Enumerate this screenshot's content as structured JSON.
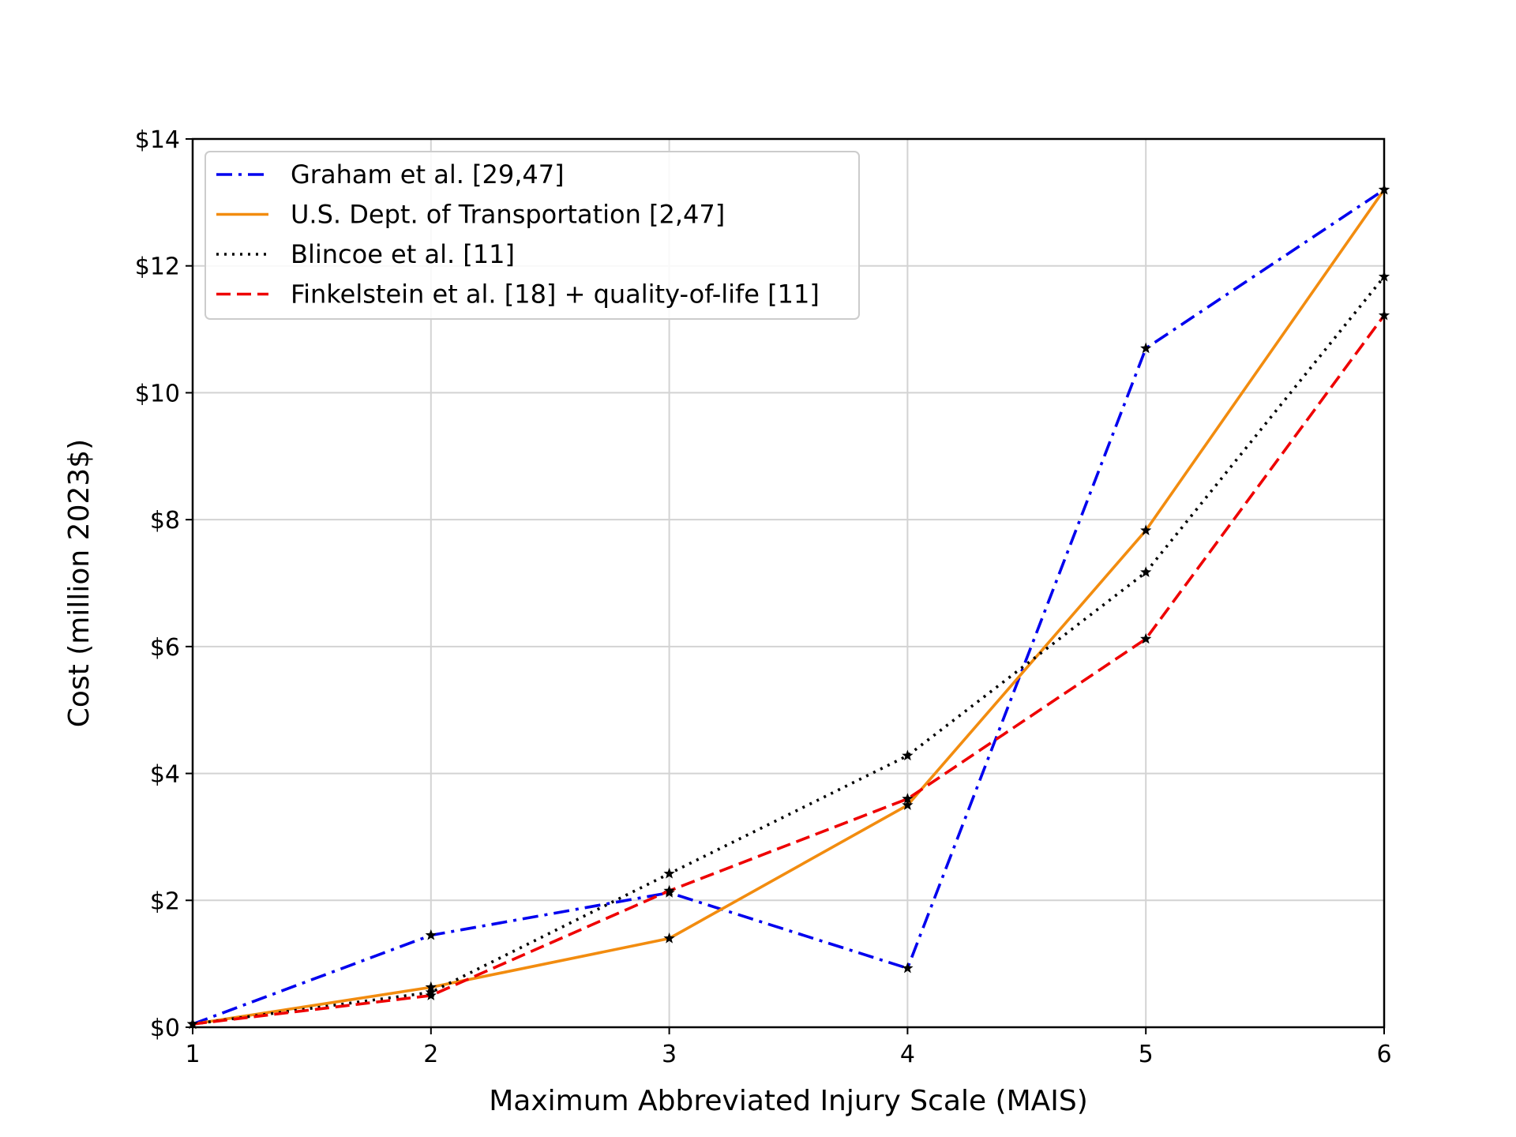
{
  "chart_data": {
    "type": "line",
    "xlabel": "Maximum Abbreviated Injury Scale (MAIS)",
    "ylabel": "Cost (million 2023$)",
    "xlim": [
      1,
      6
    ],
    "ylim": [
      0,
      14
    ],
    "x": [
      1,
      2,
      3,
      4,
      5,
      6
    ],
    "xticks": [
      "1",
      "2",
      "3",
      "4",
      "5",
      "6"
    ],
    "yticks": [
      {
        "value": 0,
        "label": "$0"
      },
      {
        "value": 2,
        "label": "$2"
      },
      {
        "value": 4,
        "label": "$4"
      },
      {
        "value": 6,
        "label": "$6"
      },
      {
        "value": 8,
        "label": "$8"
      },
      {
        "value": 10,
        "label": "$10"
      },
      {
        "value": 12,
        "label": "$12"
      },
      {
        "value": 14,
        "label": "$14"
      }
    ],
    "grid": true,
    "legend_position": "upper-left",
    "marker": "black star",
    "series": [
      {
        "name": "Graham et al. [29,47]",
        "color": "#0000ee",
        "style": "dashdot",
        "values": [
          0.05,
          1.45,
          2.12,
          0.93,
          10.7,
          13.2
        ]
      },
      {
        "name": "U.S. Dept. of Transportation [2,47]",
        "color": "#f28c0f",
        "style": "solid",
        "values": [
          0.05,
          0.63,
          1.4,
          3.5,
          7.83,
          13.2
        ]
      },
      {
        "name": "Blincoe et al. [11]",
        "color": "#000000",
        "style": "dotted",
        "values": [
          0.05,
          0.55,
          2.42,
          4.28,
          7.17,
          11.83
        ]
      },
      {
        "name": "Finkelstein et al. [18] + quality-of-life [11]",
        "color": "#ee0000",
        "style": "dashed",
        "values": [
          0.05,
          0.5,
          2.15,
          3.6,
          6.12,
          11.22
        ]
      }
    ]
  }
}
